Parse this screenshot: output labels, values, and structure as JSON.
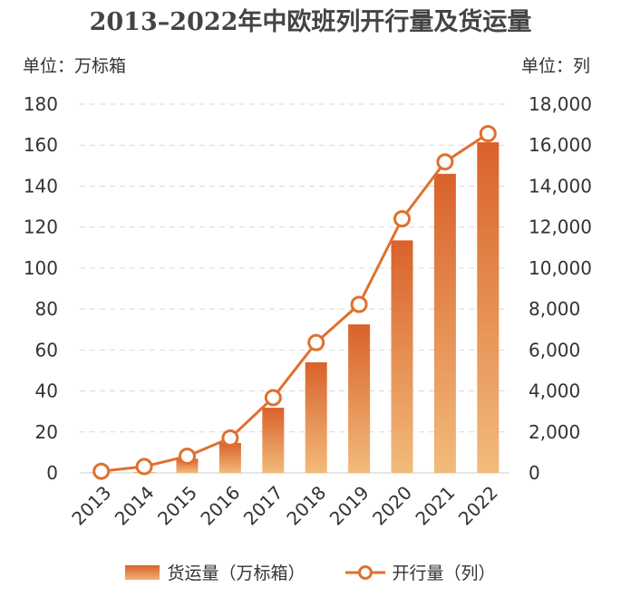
{
  "chart_data": {
    "type": "bar+line",
    "title": "2013–2022年中欧班列开行量及货运量",
    "left_axis": {
      "unit_label": "单位：万标箱",
      "ylim": [
        0,
        180
      ],
      "ticks": [
        "0",
        "20",
        "40",
        "60",
        "80",
        "100",
        "120",
        "140",
        "160",
        "180"
      ]
    },
    "right_axis": {
      "unit_label": "单位：列",
      "ylim": [
        0,
        18000
      ],
      "ticks": [
        "0",
        "2,000",
        "4,000",
        "6,000",
        "8,000",
        "10,000",
        "12,000",
        "14,000",
        "16,000",
        "18,000"
      ]
    },
    "categories": [
      "2013",
      "2014",
      "2015",
      "2016",
      "2017",
      "2018",
      "2019",
      "2020",
      "2021",
      "2022"
    ],
    "series": [
      {
        "name": "货运量（万标箱）",
        "type": "bar",
        "axis": "left",
        "values": [
          0.1,
          0.3,
          6.9,
          14.6,
          31.8,
          54,
          72.5,
          113.5,
          146,
          161.4
        ]
      },
      {
        "name": "开行量（列）",
        "type": "line",
        "axis": "right",
        "values": [
          80,
          308,
          815,
          1702,
          3673,
          6363,
          8225,
          12406,
          15183,
          16562
        ]
      }
    ],
    "grid": true,
    "legend_position": "bottom",
    "colors": {
      "bar_top": "#d9622b",
      "bar_bottom": "#f2bb7b",
      "line": "#e0702e",
      "grid": "#d9d9d9",
      "text": "#333333",
      "title": "#444444"
    }
  }
}
